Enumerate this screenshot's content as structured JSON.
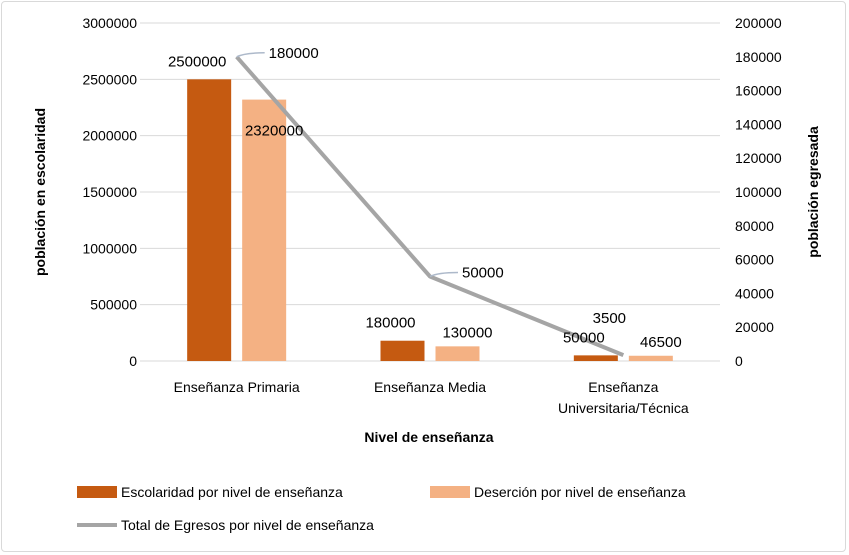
{
  "chart_data": {
    "type": "bar",
    "title": "",
    "xlabel": "Nivel de enseñanza",
    "ylabel": "población en escolaridad",
    "y2label": "población egresada",
    "categories": [
      "Enseñanza Primaria",
      "Enseñanza Media",
      "Enseñanza Universitaria/Técnica"
    ],
    "ylim": [
      0,
      3000000
    ],
    "y2lim": [
      0,
      200000
    ],
    "yticks": [
      "0",
      "500000",
      "1000000",
      "1500000",
      "2000000",
      "2500000",
      "3000000"
    ],
    "y2ticks": [
      "0",
      "20000",
      "40000",
      "60000",
      "80000",
      "100000",
      "120000",
      "140000",
      "160000",
      "180000",
      "200000"
    ],
    "grid": true,
    "legend_position": "bottom",
    "series": [
      {
        "name": "Escolaridad por nivel de enseñanza",
        "type": "bar",
        "axis": "left",
        "color": "#c55a11",
        "values": [
          2500000,
          180000,
          50000
        ],
        "labels": [
          "2500000",
          "180000",
          "50000"
        ]
      },
      {
        "name": "Deserción por nivel de enseñanza",
        "type": "bar",
        "axis": "left",
        "color": "#f4b183",
        "values": [
          2320000,
          130000,
          46500
        ],
        "labels": [
          "2320000",
          "130000",
          "46500"
        ]
      },
      {
        "name": "Total de Egresos por nivel de enseñanza",
        "type": "line",
        "axis": "right",
        "color": "#a5a5a5",
        "values": [
          180000,
          50000,
          3500
        ],
        "labels": [
          "180000",
          "50000",
          "3500"
        ]
      }
    ]
  }
}
